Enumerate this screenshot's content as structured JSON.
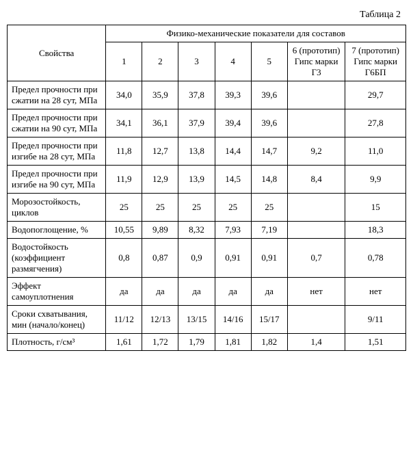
{
  "caption": "Таблица 2",
  "header": {
    "properties": "Свойства",
    "group": "Физико-механические показатели для составов",
    "cols": [
      "1",
      "2",
      "3",
      "4",
      "5",
      "6 (прототип) Гипс марки Г3",
      "7 (прототип) Гипс марки Г6БП"
    ]
  },
  "rows": [
    {
      "label": "Предел прочности при сжатии на 28 сут, МПа",
      "v": [
        "34,0",
        "35,9",
        "37,8",
        "39,3",
        "39,6",
        "",
        "29,7"
      ]
    },
    {
      "label": "Предел прочности при сжатии на 90 сут, МПа",
      "v": [
        "34,1",
        "36,1",
        "37,9",
        "39,4",
        "39,6",
        "",
        "27,8"
      ]
    },
    {
      "label": "Предел прочности при изгибе на 28 сут, МПа",
      "v": [
        "11,8",
        "12,7",
        "13,8",
        "14,4",
        "14,7",
        "9,2",
        "11,0"
      ]
    },
    {
      "label": "Предел прочности при изгибе на 90 сут, МПа",
      "v": [
        "11,9",
        "12,9",
        "13,9",
        "14,5",
        "14,8",
        "8,4",
        "9,9"
      ]
    },
    {
      "label": "Морозостойкость, циклов",
      "v": [
        "25",
        "25",
        "25",
        "25",
        "25",
        "",
        "15"
      ]
    },
    {
      "label": "Водопоглощение, %",
      "v": [
        "10,55",
        "9,89",
        "8,32",
        "7,93",
        "7,19",
        "",
        "18,3"
      ]
    },
    {
      "label": "Водостойкость (коэффициент размягчения)",
      "v": [
        "0,8",
        "0,87",
        "0,9",
        "0,91",
        "0,91",
        "0,7",
        "0,78"
      ]
    },
    {
      "label": "Эффект самоуплотнения",
      "v": [
        "да",
        "да",
        "да",
        "да",
        "да",
        "нет",
        "нет"
      ]
    },
    {
      "label": "Сроки схватывания, мин (начало/конец)",
      "v": [
        "11/12",
        "12/13",
        "13/15",
        "14/16",
        "15/17",
        "",
        "9/11"
      ]
    },
    {
      "label": "Плотность, г/см³",
      "v": [
        "1,61",
        "1,72",
        "1,79",
        "1,81",
        "1,82",
        "1,4",
        "1,51"
      ]
    }
  ]
}
